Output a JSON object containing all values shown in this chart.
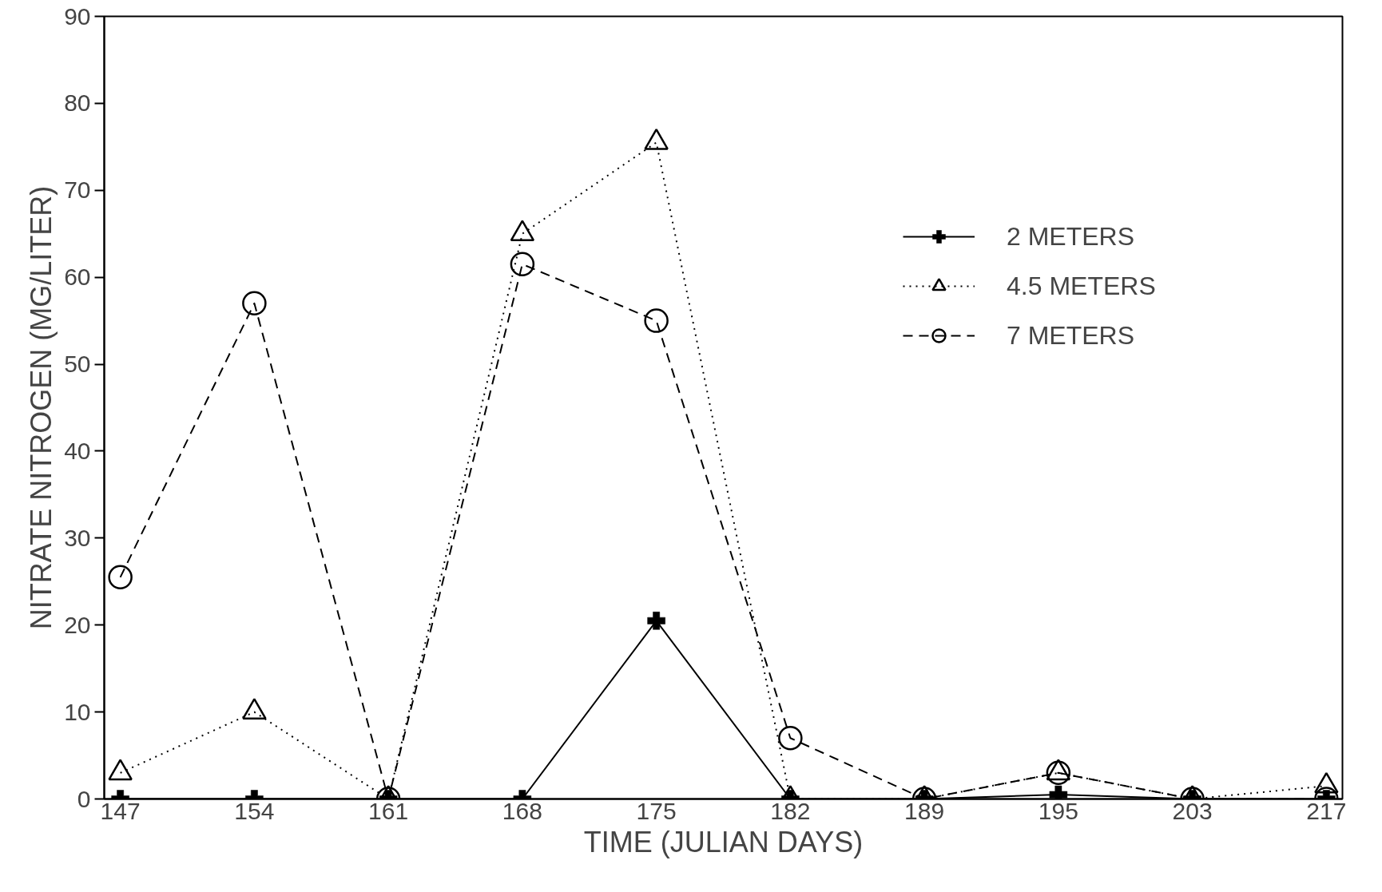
{
  "chart_data": {
    "type": "line",
    "xlabel": "TIME (JULIAN DAYS)",
    "ylabel": "NITRATE NITROGEN (MG/LITER)",
    "categories": [
      "147",
      "154",
      "161",
      "168",
      "175",
      "182",
      "189",
      "195",
      "203",
      "217"
    ],
    "ylim": [
      0,
      90
    ],
    "yticks": [
      0,
      10,
      20,
      30,
      40,
      50,
      60,
      70,
      80,
      90
    ],
    "grid": false,
    "legend": "top right",
    "series": [
      {
        "name": "2 METERS",
        "color": "#000000",
        "marker": "cross",
        "line_style": "solid",
        "values": [
          0,
          0,
          0,
          0,
          20.5,
          0,
          0,
          0.5,
          0,
          0
        ]
      },
      {
        "name": "4.5 METERS",
        "color": "#000000",
        "marker": "triangle",
        "line_style": "dotted",
        "values": [
          3,
          10,
          0,
          65,
          75.5,
          0,
          0,
          3,
          0,
          1.5
        ]
      },
      {
        "name": "7 METERS",
        "color": "#000000",
        "marker": "circle",
        "line_style": "dashed",
        "values": [
          25.5,
          57,
          0,
          61.5,
          55,
          7,
          0,
          3,
          0,
          0
        ]
      }
    ]
  }
}
